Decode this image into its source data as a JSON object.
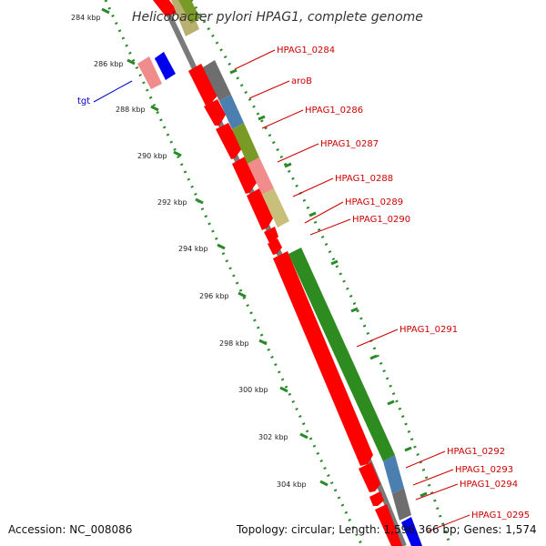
{
  "title": "Helicobacter pylori HPAG1, complete genome",
  "ruler": [
    "284 kbp",
    "286 kbp",
    "288 kbp",
    "290 kbp",
    "292 kbp",
    "294 kbp",
    "296 kbp",
    "298 kbp",
    "300 kbp",
    "302 kbp",
    "304 kbp"
  ],
  "gene_labels": {
    "g284": "HPAG1_0284",
    "aroB": "aroB",
    "g286": "HPAG1_0286",
    "g287": "HPAG1_0287",
    "g288": "HPAG1_0288",
    "g289": "HPAG1_0289",
    "g290": "HPAG1_0290",
    "g291": "HPAG1_0291",
    "g292": "HPAG1_0292",
    "g293": "HPAG1_0293",
    "g294": "HPAG1_0294",
    "g295": "HPAG1_0295",
    "tgt": "tgt"
  },
  "footer": {
    "accession": "Accession: NC_008086",
    "topology": "Topology: circular; Length: 1,596,366 bp; Genes: 1,574"
  },
  "colors": {
    "red": "#ff0000",
    "pink": "#f08c8c",
    "grey": "#6e6e6e",
    "steel": "#4a7fb0",
    "olive": "#7a9a28",
    "khaki": "#c8c07a",
    "green": "#2e8b20",
    "blue": "#0000ee"
  }
}
